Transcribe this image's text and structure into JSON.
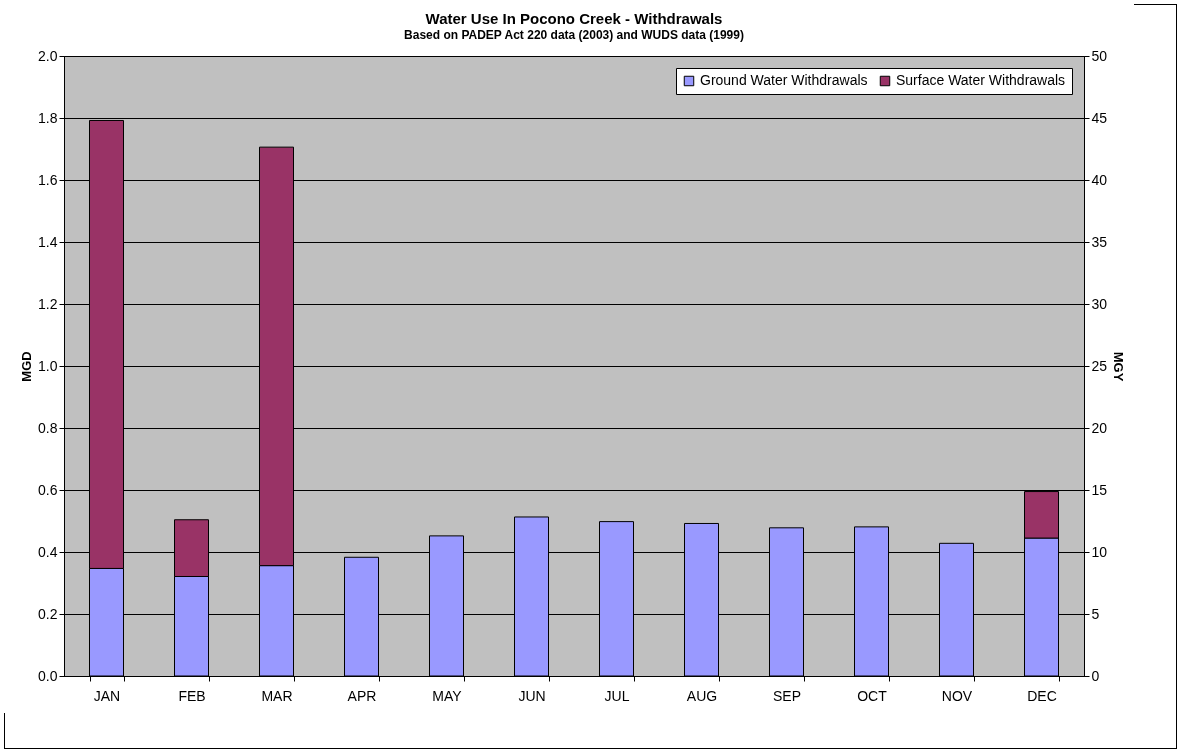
{
  "chart_data": {
    "type": "bar",
    "title": "Water Use In Pocono Creek - Withdrawals",
    "subtitle": "Based on PADEP Act 220 data (2003) and WUDS data (1999)",
    "ylabel": "MGD",
    "y2label": "MGY",
    "categories": [
      "JAN",
      "FEB",
      "MAR",
      "APR",
      "MAY",
      "JUN",
      "JUL",
      "AUG",
      "SEP",
      "OCT",
      "NOV",
      "DEC"
    ],
    "stacked": true,
    "series": [
      {
        "name": "Ground Water Withdrawals",
        "color": "#9999ff",
        "values": [
          0.347,
          0.321,
          0.356,
          0.383,
          0.452,
          0.513,
          0.498,
          0.492,
          0.478,
          0.481,
          0.428,
          0.445
        ]
      },
      {
        "name": "Surface Water Withdrawals",
        "color": "#993366",
        "values": [
          1.445,
          0.183,
          1.35,
          null,
          null,
          null,
          null,
          null,
          null,
          null,
          null,
          0.15
        ]
      }
    ],
    "ylim": [
      0,
      2
    ],
    "yticks": [
      {
        "value": 0,
        "label": "0.0"
      },
      {
        "value": 0.2,
        "label": "0.2"
      },
      {
        "value": 0.4,
        "label": "0.4"
      },
      {
        "value": 0.6,
        "label": "0.6"
      },
      {
        "value": 0.8,
        "label": "0.8"
      },
      {
        "value": 1,
        "label": "1.0"
      },
      {
        "value": 1.2,
        "label": "1.2"
      },
      {
        "value": 1.4,
        "label": "1.4"
      },
      {
        "value": 1.6,
        "label": "1.6"
      },
      {
        "value": 1.8,
        "label": "1.8"
      },
      {
        "value": 2,
        "label": "2.0"
      }
    ],
    "y2lim": [
      0,
      50
    ],
    "y2ticks": [
      0,
      5,
      10,
      15,
      20,
      25,
      30,
      35,
      40,
      45,
      50
    ],
    "grid": "y",
    "legend": "top right"
  }
}
